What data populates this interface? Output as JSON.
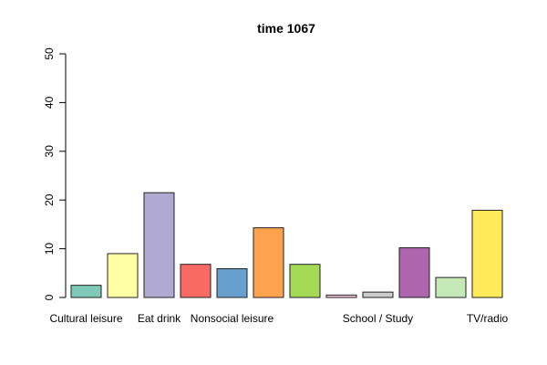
{
  "chart_data": {
    "type": "bar",
    "title": "time 1067",
    "xlabel": "",
    "ylabel": "",
    "ylim": [
      0,
      50
    ],
    "yticks": [
      0,
      10,
      20,
      30,
      40,
      50
    ],
    "categories": [
      "Cultural leisure",
      "",
      "Eat drink",
      "",
      "Nonsocial leisure",
      "",
      "",
      "",
      "School / Study",
      "",
      "",
      "TV/radio"
    ],
    "values": [
      2.5,
      9.0,
      21.5,
      6.8,
      5.9,
      14.3,
      6.8,
      0.5,
      1.1,
      10.2,
      4.1,
      17.9
    ],
    "colors": [
      "#7fc9b9",
      "#ffffa3",
      "#b0a9d1",
      "#f96a64",
      "#67a0cc",
      "#fda34f",
      "#a3d955",
      "#f7c6de",
      "#cccccc",
      "#ae65ae",
      "#c4e8b6",
      "#ffeb5a"
    ],
    "grid": false,
    "legend": "none"
  }
}
